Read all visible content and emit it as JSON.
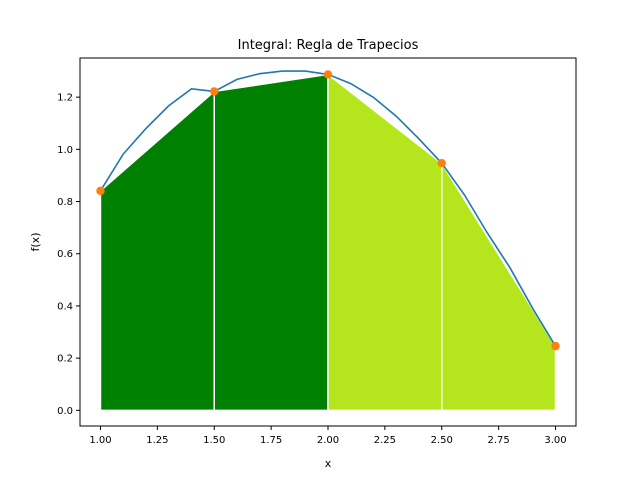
{
  "chart_data": {
    "type": "area",
    "title": "Integral: Regla de Trapecios",
    "xlabel": "x",
    "ylabel": "f(x)",
    "xlim": [
      0.91,
      3.09
    ],
    "ylim": [
      -0.06,
      1.35
    ],
    "x_ticks": [
      "1.00",
      "1.25",
      "1.50",
      "1.75",
      "2.00",
      "2.25",
      "2.50",
      "2.75",
      "3.00"
    ],
    "y_ticks": [
      "0.0",
      "0.2",
      "0.4",
      "0.6",
      "0.8",
      "1.0",
      "1.2"
    ],
    "grid": false,
    "curve": {
      "x": [
        1.0,
        1.1,
        1.2,
        1.3,
        1.4,
        1.5,
        1.6,
        1.7,
        1.8,
        1.9,
        2.0,
        2.1,
        2.2,
        2.3,
        2.4,
        2.5,
        2.6,
        2.7,
        2.8,
        2.9,
        3.0
      ],
      "y": [
        0.841,
        0.982,
        1.08,
        1.167,
        1.232,
        1.222,
        1.268,
        1.29,
        1.3,
        1.3,
        1.287,
        1.252,
        1.199,
        1.127,
        1.04,
        0.947,
        0.825,
        0.68,
        0.546,
        0.39,
        0.246
      ],
      "color": "#1f77b4"
    },
    "sample_points": {
      "x": [
        1.0,
        1.5,
        2.0,
        2.5,
        3.0
      ],
      "y": [
        0.841,
        1.222,
        1.287,
        0.947,
        0.246
      ],
      "color": "#ff7f0e"
    },
    "trapezoids": [
      {
        "x0": 1.0,
        "x1": 1.5,
        "y0": 0.841,
        "y1": 1.222,
        "color": "#008000"
      },
      {
        "x0": 1.5,
        "x1": 2.0,
        "y0": 1.222,
        "y1": 1.287,
        "color": "#008000"
      },
      {
        "x0": 2.0,
        "x1": 2.5,
        "y0": 1.287,
        "y1": 0.947,
        "color": "#b5e61d"
      },
      {
        "x0": 2.5,
        "x1": 3.0,
        "y0": 0.947,
        "y1": 0.246,
        "color": "#b5e61d"
      }
    ]
  }
}
